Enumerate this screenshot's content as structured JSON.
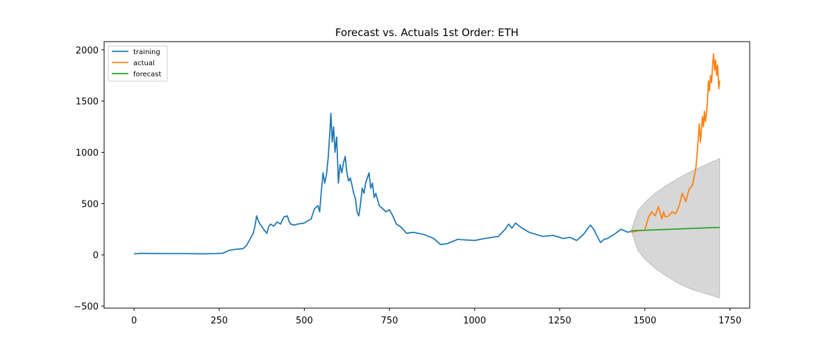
{
  "chart_data": {
    "type": "line",
    "title": "Forecast vs. Actuals 1st Order: ETH",
    "xlabel": "",
    "ylabel": "",
    "xlim": [
      -88,
      1808
    ],
    "ylim": [
      -520,
      2080
    ],
    "x_ticks": [
      0,
      250,
      500,
      750,
      1000,
      1250,
      1500,
      1750
    ],
    "y_ticks": [
      -500,
      0,
      500,
      1000,
      1500,
      2000
    ],
    "x_tick_labels": [
      "0",
      "250",
      "500",
      "750",
      "1000",
      "1250",
      "1500",
      "1750"
    ],
    "y_tick_labels": [
      "−500",
      "0",
      "500",
      "1000",
      "1500",
      "2000"
    ],
    "grid": false,
    "legend_position": "top-left",
    "series": [
      {
        "name": "training",
        "color": "#1f77b4",
        "x": [
          0,
          20,
          50,
          100,
          150,
          200,
          240,
          260,
          270,
          280,
          300,
          320,
          330,
          340,
          350,
          355,
          360,
          365,
          370,
          380,
          390,
          395,
          400,
          410,
          420,
          430,
          440,
          450,
          455,
          460,
          470,
          480,
          500,
          520,
          530,
          540,
          545,
          550,
          555,
          560,
          565,
          570,
          575,
          578,
          582,
          586,
          590,
          595,
          600,
          605,
          610,
          615,
          620,
          625,
          630,
          635,
          640,
          645,
          650,
          655,
          660,
          665,
          670,
          675,
          680,
          690,
          695,
          700,
          705,
          710,
          720,
          730,
          740,
          750,
          760,
          770,
          780,
          790,
          800,
          820,
          850,
          880,
          900,
          920,
          950,
          1000,
          1030,
          1050,
          1070,
          1090,
          1100,
          1110,
          1120,
          1140,
          1160,
          1180,
          1200,
          1230,
          1260,
          1280,
          1300,
          1320,
          1340,
          1350,
          1360,
          1370,
          1380,
          1390,
          1410,
          1430,
          1450,
          1460
        ],
        "y": [
          10,
          14,
          13,
          12,
          12,
          10,
          12,
          15,
          30,
          45,
          55,
          60,
          90,
          150,
          210,
          280,
          380,
          330,
          300,
          250,
          210,
          270,
          300,
          280,
          320,
          300,
          370,
          380,
          330,
          300,
          290,
          300,
          310,
          350,
          450,
          480,
          420,
          620,
          800,
          700,
          780,
          950,
          1200,
          1380,
          1100,
          1250,
          1000,
          1150,
          700,
          880,
          800,
          900,
          960,
          800,
          720,
          750,
          680,
          600,
          550,
          420,
          380,
          500,
          650,
          600,
          700,
          800,
          650,
          700,
          560,
          600,
          480,
          450,
          420,
          440,
          380,
          300,
          280,
          250,
          210,
          220,
          200,
          160,
          100,
          110,
          150,
          140,
          160,
          170,
          180,
          250,
          300,
          260,
          310,
          260,
          220,
          200,
          180,
          190,
          160,
          170,
          140,
          200,
          290,
          250,
          180,
          120,
          150,
          160,
          200,
          250,
          220,
          230
        ]
      },
      {
        "name": "actual",
        "color": "#ff7f0e",
        "x": [
          1460,
          1480,
          1500,
          1505,
          1510,
          1520,
          1530,
          1540,
          1550,
          1555,
          1560,
          1570,
          1580,
          1590,
          1600,
          1610,
          1620,
          1630,
          1640,
          1650,
          1655,
          1660,
          1663,
          1666,
          1669,
          1672,
          1675,
          1678,
          1681,
          1684,
          1687,
          1690,
          1693,
          1696,
          1699,
          1702,
          1705,
          1708,
          1711,
          1714,
          1717,
          1720
        ],
        "y": [
          220,
          235,
          240,
          300,
          360,
          420,
          380,
          470,
          350,
          420,
          370,
          380,
          420,
          400,
          470,
          600,
          520,
          640,
          680,
          850,
          1050,
          1280,
          1100,
          1200,
          1350,
          1250,
          1400,
          1300,
          1380,
          1500,
          1700,
          1600,
          1750,
          1680,
          1850,
          1960,
          1800,
          1900,
          1750,
          1850,
          1620,
          1700
        ]
      },
      {
        "name": "forecast",
        "color": "#2ca02c",
        "x": [
          1460,
          1720
        ],
        "y": [
          235,
          268
        ]
      }
    ],
    "confidence_band": {
      "color": "#d3d3d3",
      "x": [
        1460,
        1480,
        1500,
        1530,
        1560,
        1600,
        1640,
        1680,
        1720
      ],
      "upper": [
        235,
        430,
        510,
        600,
        670,
        750,
        820,
        880,
        940
      ],
      "lower": [
        235,
        40,
        -40,
        -130,
        -200,
        -280,
        -340,
        -380,
        -420
      ]
    }
  }
}
